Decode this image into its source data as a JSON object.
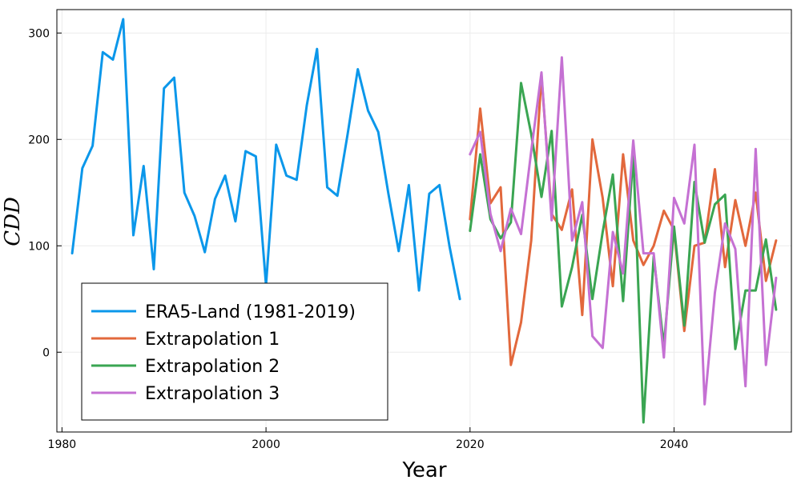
{
  "chart_data": {
    "type": "line",
    "title": "",
    "xlabel": "Year",
    "ylabel": "CDD",
    "xlim": [
      1979.5,
      2051.5
    ],
    "ylim": [
      -75,
      322
    ],
    "xticks": [
      1980,
      2000,
      2020,
      2040
    ],
    "yticks": [
      0,
      100,
      200,
      300
    ],
    "grid": true,
    "legend_position": "bottom-left",
    "series": [
      {
        "name": "ERA5-Land (1981-2019)",
        "color": "#0b97ea",
        "x": [
          1981,
          1982,
          1983,
          1984,
          1985,
          1986,
          1987,
          1988,
          1989,
          1990,
          1991,
          1992,
          1993,
          1994,
          1995,
          1996,
          1997,
          1998,
          1999,
          2000,
          2001,
          2002,
          2003,
          2004,
          2005,
          2006,
          2007,
          2008,
          2009,
          2010,
          2011,
          2012,
          2013,
          2014,
          2015,
          2016,
          2017,
          2018,
          2019
        ],
        "y": [
          93,
          173,
          194,
          282,
          275,
          313,
          110,
          175,
          78,
          248,
          258,
          150,
          128,
          94,
          144,
          166,
          123,
          189,
          184,
          63,
          195,
          166,
          162,
          232,
          285,
          155,
          147,
          205,
          266,
          227,
          207,
          149,
          95,
          157,
          58,
          149,
          157,
          99,
          50
        ]
      },
      {
        "name": "Extrapolation 1",
        "color": "#e2683c",
        "x": [
          2020,
          2021,
          2022,
          2023,
          2024,
          2025,
          2026,
          2027,
          2028,
          2029,
          2030,
          2031,
          2032,
          2033,
          2034,
          2035,
          2036,
          2037,
          2038,
          2039,
          2040,
          2041,
          2042,
          2043,
          2044,
          2045,
          2046,
          2047,
          2048,
          2049,
          2050
        ],
        "y": [
          125,
          229,
          140,
          155,
          -12,
          28,
          105,
          260,
          130,
          115,
          153,
          35,
          200,
          145,
          62,
          186,
          105,
          82,
          100,
          133,
          115,
          20,
          100,
          103,
          172,
          80,
          143,
          100,
          150,
          67,
          105
        ]
      },
      {
        "name": "Extrapolation 2",
        "color": "#3aa552",
        "x": [
          2020,
          2021,
          2022,
          2023,
          2024,
          2025,
          2026,
          2027,
          2028,
          2029,
          2030,
          2031,
          2032,
          2033,
          2034,
          2035,
          2036,
          2037,
          2038,
          2039,
          2040,
          2041,
          2042,
          2043,
          2044,
          2045,
          2046,
          2047,
          2048,
          2049,
          2050
        ],
        "y": [
          114,
          186,
          125,
          107,
          122,
          253,
          205,
          146,
          208,
          43,
          80,
          129,
          50,
          113,
          167,
          48,
          186,
          -66,
          90,
          6,
          118,
          25,
          160,
          103,
          139,
          148,
          3,
          58,
          58,
          106,
          40
        ]
      },
      {
        "name": "Extrapolation 3",
        "color": "#c571d3",
        "x": [
          2020,
          2021,
          2022,
          2023,
          2024,
          2025,
          2026,
          2027,
          2028,
          2029,
          2030,
          2031,
          2032,
          2033,
          2034,
          2035,
          2036,
          2037,
          2038,
          2039,
          2040,
          2041,
          2042,
          2043,
          2044,
          2045,
          2046,
          2047,
          2048,
          2049,
          2050
        ],
        "y": [
          186,
          207,
          130,
          95,
          135,
          111,
          189,
          263,
          124,
          277,
          105,
          141,
          15,
          4,
          113,
          74,
          199,
          93,
          93,
          -5,
          145,
          121,
          195,
          -49,
          56,
          121,
          97,
          -32,
          191,
          -12,
          70
        ]
      }
    ]
  }
}
